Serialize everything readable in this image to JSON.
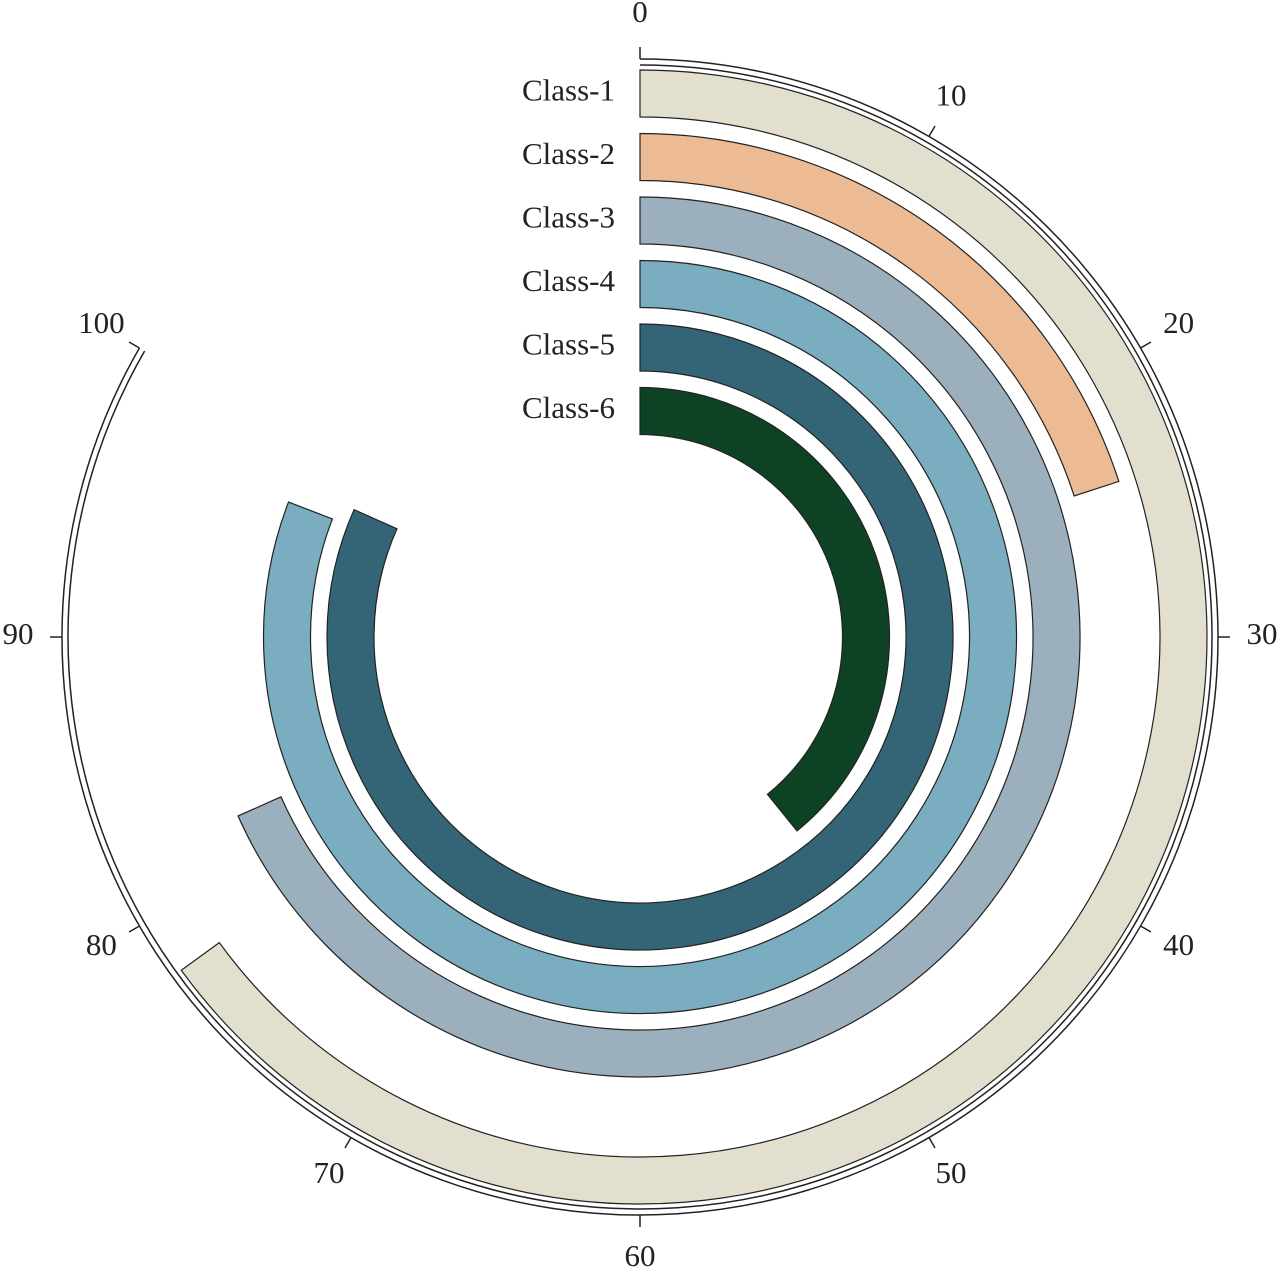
{
  "chart_data": {
    "type": "radial_bar",
    "categories": [
      "Class-1",
      "Class-2",
      "Class-3",
      "Class-4",
      "Class-5",
      "Class-6"
    ],
    "values": [
      78,
      24,
      82,
      97,
      98,
      47
    ],
    "colors": [
      "#e3dfcf",
      "#ecbb93",
      "#9bb0bc",
      "#7aadbf",
      "#336577",
      "#0d4324"
    ],
    "xlim": [
      0,
      100
    ],
    "xticks": [
      0,
      10,
      20,
      30,
      40,
      50,
      60,
      70,
      80,
      90,
      100
    ]
  }
}
